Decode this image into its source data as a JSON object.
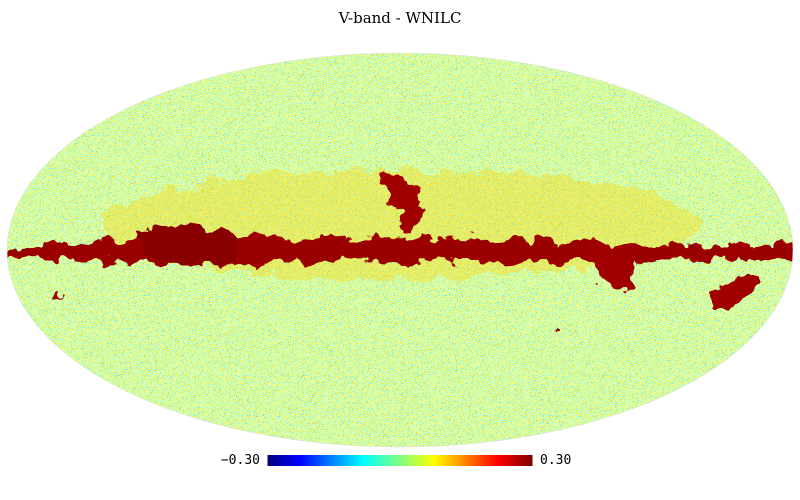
{
  "title": "V-band - WNILC",
  "colorbar": {
    "min": {
      "value": -0.3,
      "label": "−0.30"
    },
    "max": {
      "value": 0.3,
      "label": "0.30"
    }
  }
}
